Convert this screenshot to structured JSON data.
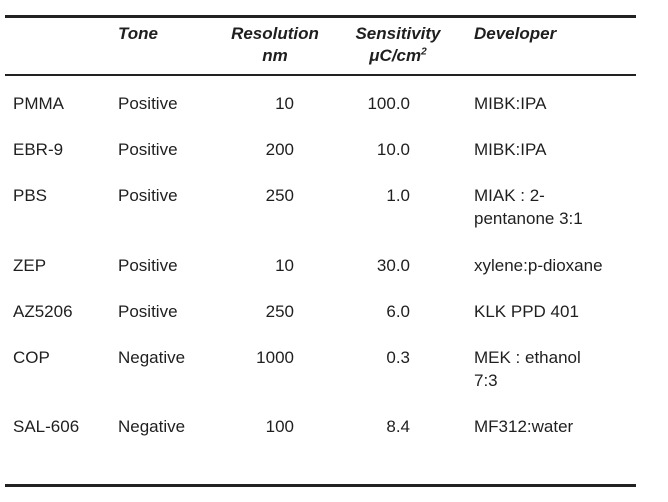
{
  "header": {
    "tone": "Tone",
    "resolution_line1": "Resolution",
    "resolution_line2": "nm",
    "sensitivity_line1": "Sensitivity",
    "sensitivity_unit": "μC/cm",
    "sensitivity_sup": "2",
    "developer": "Developer"
  },
  "rows": [
    {
      "material": "PMMA",
      "tone": "Positive",
      "resolution": "10",
      "sensitivity": "100.0",
      "developer_line1": "MIBK:IPA",
      "developer_line2": ""
    },
    {
      "material": "EBR-9",
      "tone": "Positive",
      "resolution": "200",
      "sensitivity": "10.0",
      "developer_line1": "MIBK:IPA",
      "developer_line2": ""
    },
    {
      "material": "PBS",
      "tone": "Positive",
      "resolution": "250",
      "sensitivity": "1.0",
      "developer_line1": "MIAK : 2-",
      "developer_line2": "pentanone 3:1"
    },
    {
      "material": "ZEP",
      "tone": "Positive",
      "resolution": "10",
      "sensitivity": "30.0",
      "developer_line1": "xylene:p-dioxane",
      "developer_line2": ""
    },
    {
      "material": "AZ5206",
      "tone": "Positive",
      "resolution": "250",
      "sensitivity": "6.0",
      "developer_line1": "KLK PPD 401",
      "developer_line2": ""
    },
    {
      "material": "COP",
      "tone": "Negative",
      "resolution": "1000",
      "sensitivity": "0.3",
      "developer_line1": "MEK : ethanol",
      "developer_line2": "7:3"
    },
    {
      "material": "SAL-606",
      "tone": "Negative",
      "resolution": "100",
      "sensitivity": "8.4",
      "developer_line1": "MF312:water",
      "developer_line2": ""
    }
  ]
}
